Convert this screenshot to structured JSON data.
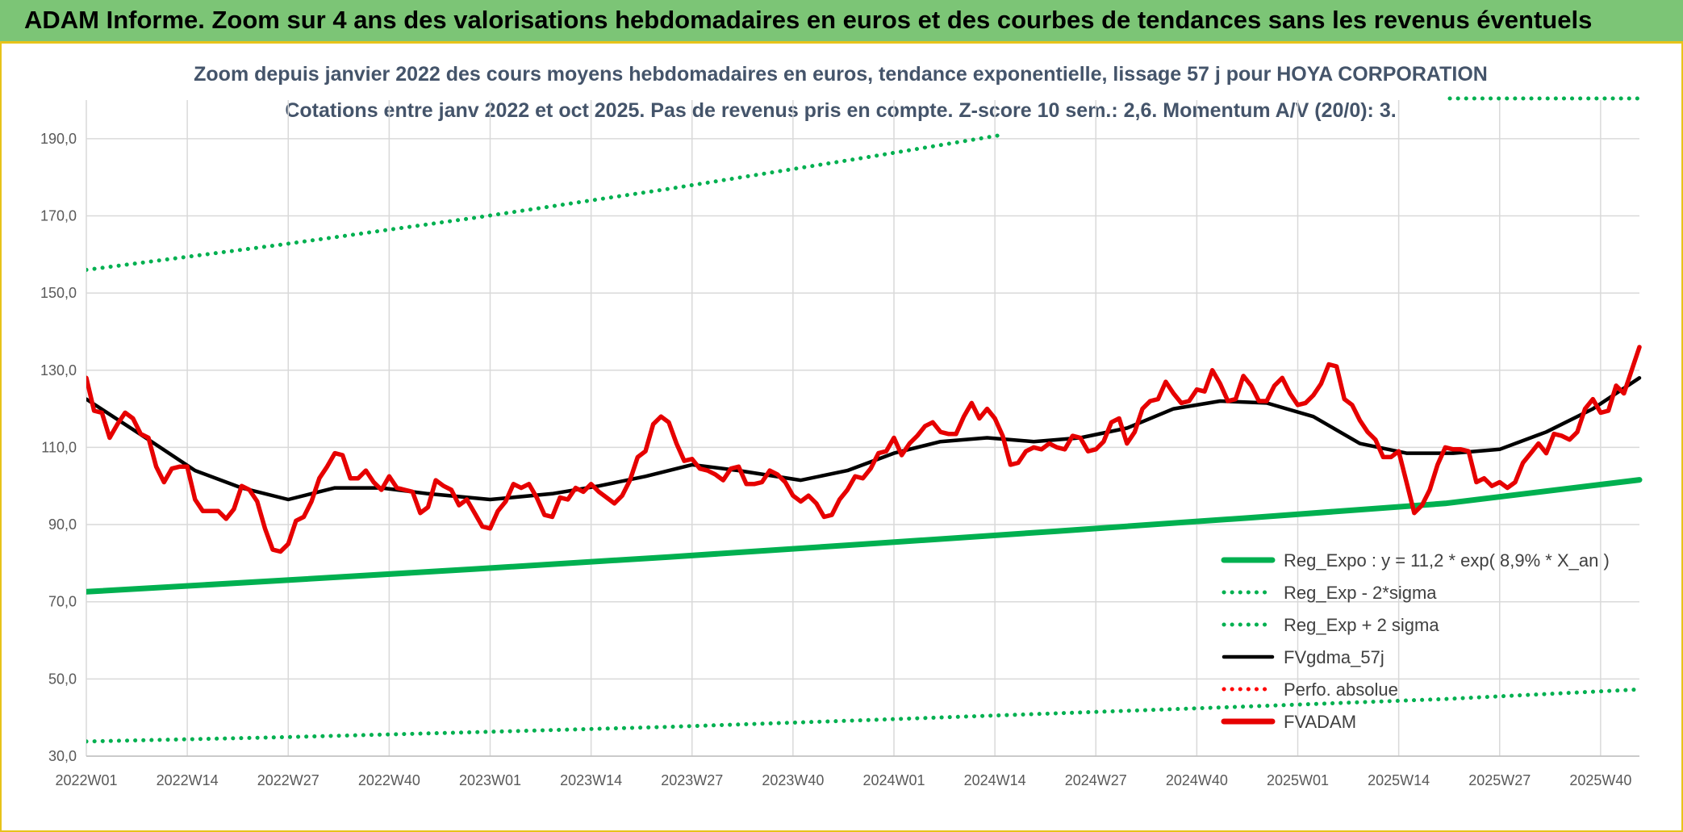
{
  "header": {
    "title": "ADAM Informe. Zoom sur 4 ans des valorisations hebdomadaires en euros et des courbes de tendances sans les revenus éventuels",
    "background": "#7cc576",
    "border": "#e7c31a"
  },
  "chart_data": {
    "type": "line",
    "title": "Zoom depuis janvier 2022 des cours moyens hebdomadaires en euros, tendance exponentielle, lissage 57 j pour HOYA CORPORATION",
    "subtitle": "Cotations entre janv 2022 et oct 2025. Pas de revenus pris en compte. Z-score 10 sem.: 2,6. Momentum A/V (20/0): 3.",
    "xlabel": "",
    "ylabel": "",
    "ylim": [
      30,
      200
    ],
    "yticks": [
      "30,0",
      "50,0",
      "70,0",
      "90,0",
      "110,0",
      "130,0",
      "150,0",
      "170,0",
      "190,0"
    ],
    "ytick_values": [
      30,
      50,
      70,
      90,
      110,
      130,
      150,
      170,
      190
    ],
    "x_ticks": [
      "2022W01",
      "2022W14",
      "2022W27",
      "2022W40",
      "2023W01",
      "2023W14",
      "2023W27",
      "2023W40",
      "2024W01",
      "2024W14",
      "2024W27",
      "2024W40",
      "2025W01",
      "2025W14",
      "2025W27",
      "2025W40"
    ],
    "x_tick_weeks": [
      0,
      13,
      26,
      39,
      52,
      65,
      78,
      91,
      104,
      117,
      130,
      143,
      156,
      169,
      182,
      195
    ],
    "x_range_weeks": [
      0,
      200
    ],
    "grid": true,
    "legend_position": "bottom-right",
    "legend": [
      {
        "label": "Reg_Expo : y = 11,2 * exp( 8,9% *  X_an )",
        "color": "#00b050",
        "style": "solid-thick"
      },
      {
        "label": "Reg_Exp - 2*sigma",
        "color": "#00b050",
        "style": "dotted"
      },
      {
        "label": "Reg_Exp + 2 sigma",
        "color": "#00b050",
        "style": "dotted"
      },
      {
        "label": "FVgdma_57j",
        "color": "#000000",
        "style": "solid"
      },
      {
        "label": "Perfo. absolue",
        "color": "#ff0000",
        "style": "dotted"
      },
      {
        "label": "FVADAM",
        "color": "#e60000",
        "style": "solid-thick"
      }
    ],
    "series": [
      {
        "name": "Reg_Expo : y = 11,2 * exp( 8,9% *  X_an )",
        "color": "#00b050",
        "x": [
          0,
          25,
          50,
          75,
          100,
          125,
          150,
          175,
          200
        ],
        "values": [
          72.6,
          75.5,
          78.5,
          81.6,
          84.9,
          88.3,
          91.8,
          95.5,
          101.6
        ]
      },
      {
        "name": "Reg_Exp - 2*sigma",
        "color": "#00b050",
        "x": [
          0,
          25,
          50,
          75,
          100,
          125,
          150,
          175,
          200
        ],
        "values": [
          33.8,
          34.9,
          36.2,
          37.6,
          39.3,
          41.1,
          42.9,
          44.8,
          47.3
        ]
      },
      {
        "name": "Reg_Exp + 2 sigma",
        "color": "#00b050",
        "x": [
          0,
          25,
          50,
          75,
          100,
          118
        ],
        "values": [
          156,
          162.5,
          169.5,
          177,
          185,
          191
        ]
      },
      {
        "name": "FVgdma_57j",
        "color": "#000000",
        "x": [
          0,
          8,
          14,
          20,
          26,
          32,
          38,
          44,
          52,
          60,
          66,
          72,
          78,
          84,
          92,
          98,
          104,
          110,
          116,
          122,
          128,
          134,
          140,
          146,
          152,
          158,
          164,
          170,
          176,
          182,
          188,
          194,
          200
        ],
        "values": [
          122.5,
          112,
          104,
          99.5,
          96.5,
          99.5,
          99.5,
          98,
          96.5,
          98,
          100,
          102.5,
          105.5,
          104,
          101.5,
          104,
          108.5,
          111.5,
          112.5,
          111.5,
          112.5,
          115,
          120,
          122,
          121.5,
          118,
          111,
          108.5,
          108.5,
          109.5,
          114,
          120,
          128
        ]
      },
      {
        "name": "FVADAM",
        "color": "#e60000",
        "x": [
          0,
          1,
          2,
          3,
          4,
          5,
          6,
          7,
          8,
          9,
          10,
          11,
          12,
          13,
          14,
          15,
          16,
          17,
          18,
          19,
          20,
          21,
          22,
          23,
          24,
          25,
          26,
          27,
          28,
          29,
          30,
          31,
          32,
          33,
          34,
          35,
          36,
          37,
          38,
          39,
          40,
          41,
          42,
          43,
          44,
          45,
          46,
          47,
          48,
          49,
          50,
          51,
          52,
          53,
          54,
          55,
          56,
          57,
          58,
          59,
          60,
          61,
          62,
          63,
          64,
          65,
          66,
          67,
          68,
          69,
          70,
          71,
          72,
          73,
          74,
          75,
          76,
          77,
          78,
          79,
          80,
          81,
          82,
          83,
          84,
          85,
          86,
          87,
          88,
          89,
          90,
          91,
          92,
          93,
          94,
          95,
          96,
          97,
          98,
          99,
          100,
          101,
          102,
          103,
          104,
          105,
          106,
          107,
          108,
          109,
          110,
          111,
          112,
          113,
          114,
          115,
          116,
          117,
          118,
          119,
          120,
          121,
          122,
          123,
          124,
          125,
          126,
          127,
          128,
          129,
          130,
          131,
          132,
          133,
          134,
          135,
          136,
          137,
          138,
          139,
          140,
          141,
          142,
          143,
          144,
          145,
          146,
          147,
          148,
          149,
          150,
          151,
          152,
          153,
          154,
          155,
          156,
          157,
          158,
          159,
          160,
          161,
          162,
          163,
          164,
          165,
          166,
          167,
          168,
          169,
          170,
          171,
          172,
          173,
          174,
          175,
          176,
          177,
          178,
          179,
          180,
          181,
          182,
          183,
          184,
          185,
          186,
          187,
          188,
          189,
          190,
          191,
          192,
          193,
          194,
          195,
          196,
          197,
          198,
          199,
          200
        ],
        "values": [
          128,
          119.5,
          119,
          112.5,
          116,
          119,
          117.5,
          113.5,
          112.5,
          105,
          101,
          104.5,
          105,
          105,
          96.5,
          93.5,
          93.5,
          93.5,
          91.5,
          94,
          100,
          99,
          96,
          89,
          83.5,
          83,
          85,
          91,
          92,
          96,
          102,
          105,
          108.5,
          108,
          102,
          102,
          104,
          101,
          99,
          102.5,
          99.5,
          99,
          98.5,
          93,
          94.5,
          101.5,
          100,
          99,
          95,
          96.5,
          93,
          89.5,
          89,
          93.5,
          96,
          100.5,
          99.5,
          100.5,
          97,
          92.5,
          92,
          97,
          96.5,
          99.5,
          98.5,
          100.5,
          98.5,
          97,
          95.5,
          97.5,
          101.5,
          107.5,
          109,
          116,
          118,
          116.5,
          111,
          106.5,
          107,
          104.5,
          104,
          103,
          101.5,
          104.5,
          105,
          100.5,
          100.5,
          101,
          104,
          103,
          101,
          97.5,
          96,
          97.5,
          95.5,
          92,
          92.5,
          96.5,
          99,
          102.5,
          102,
          104.5,
          108.5,
          109,
          112.5,
          108,
          111,
          113,
          115.5,
          116.5,
          114,
          113.5,
          113.5,
          118,
          121.5,
          117.5,
          120,
          117.5,
          113,
          105.5,
          106,
          109,
          110,
          109.5,
          111,
          110,
          109.5,
          113,
          112.5,
          109,
          109.5,
          111.5,
          116.5,
          117.5,
          111,
          114,
          120,
          122,
          122.5,
          127,
          124,
          121.5,
          122,
          125,
          124.5,
          130,
          126.5,
          122,
          122.5,
          128.5,
          126,
          122,
          122,
          126,
          128,
          124,
          121,
          121.5,
          123.5,
          126.5,
          131.5,
          131,
          122.5,
          121,
          117,
          114,
          112,
          107.5,
          107.5,
          109,
          101,
          93,
          95,
          99,
          105.5,
          110,
          109.5,
          109.5,
          109,
          101,
          102,
          100,
          101,
          99.5,
          101,
          106,
          108.5,
          111,
          108.5,
          113.5,
          113,
          112,
          114,
          120,
          122.5,
          119,
          119.5,
          126,
          124,
          130,
          136
        ]
      }
    ]
  }
}
